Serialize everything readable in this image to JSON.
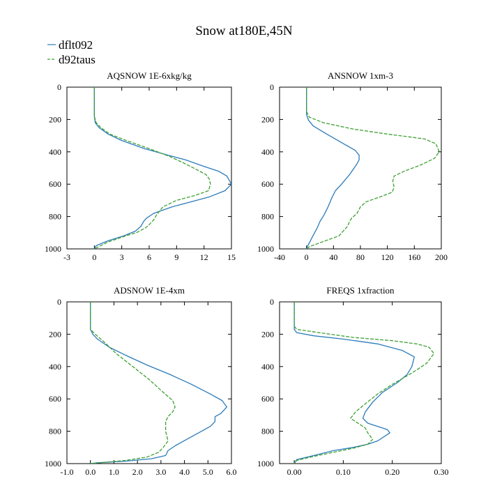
{
  "title": "Snow at180E,45N",
  "legend": [
    {
      "label": "dflt092",
      "color": "#2b7bba",
      "dash": "solid"
    },
    {
      "label": "d92taus",
      "color": "#3ea032",
      "dash": "dashed"
    }
  ],
  "chart_data": [
    {
      "type": "line",
      "title": "AQSNOW  1E-6xkg/kg",
      "xlim": [
        -3,
        15
      ],
      "ylim": [
        1000,
        0
      ],
      "xticks": [
        -3,
        0,
        3,
        6,
        9,
        12,
        15
      ],
      "xticklabels": [
        "-3",
        "0",
        "3",
        "6",
        "9",
        "12",
        "15"
      ],
      "yticks": [
        0,
        200,
        400,
        600,
        800,
        1000
      ],
      "yticklabels": [
        "0",
        "200",
        "400",
        "600",
        "800",
        "1000"
      ],
      "series": [
        {
          "name": "dflt092",
          "x": [
            0,
            0,
            0.1,
            0.5,
            1.5,
            3,
            5.5,
            8,
            10,
            12,
            13.6,
            14.5,
            15,
            14.3,
            12.5,
            10.5,
            8.5,
            6.5,
            5.7,
            5.4,
            5.1,
            4.5,
            3.2,
            1.5,
            0.2,
            0
          ],
          "y": [
            0,
            180,
            220,
            250,
            290,
            330,
            380,
            420,
            450,
            490,
            520,
            550,
            600,
            640,
            680,
            710,
            740,
            780,
            810,
            830,
            860,
            890,
            920,
            950,
            980,
            1000
          ]
        },
        {
          "name": "d92taus",
          "x": [
            0,
            0,
            0.2,
            0.7,
            1.7,
            3.5,
            6,
            8.3,
            9.8,
            11.2,
            12.2,
            12.6,
            12.7,
            12.5,
            11,
            9,
            7.5,
            6.8,
            6.5,
            6,
            5.6,
            4.6,
            3.4,
            1.4,
            0
          ],
          "y": [
            0,
            180,
            220,
            250,
            290,
            330,
            380,
            430,
            470,
            510,
            540,
            570,
            600,
            640,
            670,
            700,
            740,
            790,
            820,
            850,
            870,
            900,
            920,
            960,
            1000
          ]
        }
      ]
    },
    {
      "type": "line",
      "title": "ANSNOW  1xm-3",
      "xlim": [
        -40,
        200
      ],
      "ylim": [
        1000,
        0
      ],
      "xticks": [
        -40,
        0,
        40,
        80,
        120,
        160,
        200
      ],
      "xticklabels": [
        "-40",
        "0",
        "40",
        "80",
        "120",
        "160",
        "200"
      ],
      "yticks": [
        0,
        200,
        400,
        600,
        800,
        1000
      ],
      "yticklabels": [
        "0",
        "200",
        "400",
        "600",
        "800",
        "1000"
      ],
      "series": [
        {
          "name": "dflt092",
          "x": [
            0,
            0,
            3,
            10,
            30,
            55,
            72,
            78,
            78,
            74,
            64,
            52,
            43,
            38,
            32,
            26,
            20,
            16,
            12,
            7,
            2,
            0
          ],
          "y": [
            0,
            170,
            205,
            240,
            290,
            350,
            390,
            420,
            450,
            480,
            540,
            600,
            640,
            680,
            740,
            790,
            830,
            870,
            900,
            940,
            980,
            1000
          ]
        },
        {
          "name": "d92taus",
          "x": [
            0,
            0,
            4,
            25,
            70,
            120,
            175,
            192,
            197,
            190,
            170,
            145,
            130,
            128,
            130,
            127,
            108,
            88,
            80,
            75,
            67,
            64,
            61,
            48,
            28,
            5,
            0
          ],
          "y": [
            0,
            150,
            185,
            220,
            260,
            290,
            320,
            350,
            400,
            440,
            480,
            520,
            550,
            580,
            620,
            650,
            680,
            710,
            740,
            780,
            810,
            830,
            860,
            920,
            950,
            985,
            1000
          ]
        }
      ]
    },
    {
      "type": "line",
      "title": "ADSNOW  1E-4xm",
      "xlim": [
        -1,
        6
      ],
      "ylim": [
        1000,
        0
      ],
      "xticks": [
        -1,
        0,
        1,
        2,
        3,
        4,
        5,
        6
      ],
      "xticklabels": [
        "-1.0",
        "0.0",
        "1.0",
        "2.0",
        "3.0",
        "4.0",
        "5.0",
        "6.0"
      ],
      "yticks": [
        0,
        200,
        400,
        600,
        800,
        1000
      ],
      "yticklabels": [
        "0",
        "200",
        "400",
        "600",
        "800",
        "1000"
      ],
      "series": [
        {
          "name": "dflt092",
          "x": [
            0,
            0,
            0.1,
            0.3,
            0.8,
            1.5,
            2.4,
            3.4,
            4.3,
            5.1,
            5.6,
            5.8,
            5.55,
            5.3,
            5.3,
            5.1,
            4.6,
            4.1,
            3.6,
            3.3,
            3.2,
            2.6,
            1.5,
            0.3,
            0
          ],
          "y": [
            0,
            170,
            200,
            230,
            280,
            330,
            390,
            450,
            510,
            570,
            610,
            650,
            690,
            710,
            740,
            770,
            810,
            850,
            890,
            920,
            950,
            970,
            985,
            995,
            1000
          ]
        },
        {
          "name": "d92taus",
          "x": [
            0,
            0,
            0.2,
            0.6,
            1.1,
            1.8,
            2.5,
            3.1,
            3.5,
            3.6,
            3.5,
            3.3,
            3.2,
            3.2,
            3.3,
            3.1,
            2.9,
            2.4,
            1.5,
            0.4,
            0
          ],
          "y": [
            0,
            170,
            200,
            250,
            320,
            400,
            480,
            560,
            610,
            650,
            680,
            710,
            740,
            800,
            860,
            900,
            930,
            960,
            980,
            995,
            1000
          ]
        }
      ]
    },
    {
      "type": "line",
      "title": "FREQS  1xfraction",
      "xlim": [
        -0.03,
        0.3
      ],
      "ylim": [
        1000,
        0
      ],
      "xticks": [
        0.0,
        0.1,
        0.2,
        0.3
      ],
      "xticklabels": [
        "0.00",
        "0.10",
        "0.20",
        "0.30"
      ],
      "yticks": [
        0,
        200,
        400,
        600,
        800,
        1000
      ],
      "yticklabels": [
        "0",
        "200",
        "400",
        "600",
        "800",
        "1000"
      ],
      "series": [
        {
          "name": "dflt092",
          "x": [
            0,
            0,
            0.005,
            0.04,
            0.1,
            0.17,
            0.22,
            0.245,
            0.24,
            0.23,
            0.21,
            0.18,
            0.16,
            0.145,
            0.14,
            0.15,
            0.17,
            0.19,
            0.195,
            0.17,
            0.15,
            0.12,
            0.08,
            0.04,
            0.005,
            0
          ],
          "y": [
            0,
            170,
            190,
            210,
            230,
            260,
            300,
            340,
            400,
            450,
            500,
            560,
            620,
            680,
            720,
            750,
            770,
            790,
            810,
            860,
            880,
            900,
            920,
            950,
            975,
            1000
          ]
        },
        {
          "name": "d92taus",
          "x": [
            0,
            0,
            0.005,
            0.05,
            0.12,
            0.2,
            0.25,
            0.275,
            0.285,
            0.27,
            0.24,
            0.2,
            0.17,
            0.145,
            0.125,
            0.115,
            0.13,
            0.145,
            0.15,
            0.16,
            0.15,
            0.12,
            0.08,
            0.04,
            0.005,
            0
          ],
          "y": [
            0,
            150,
            170,
            190,
            220,
            240,
            260,
            280,
            320,
            380,
            440,
            510,
            570,
            630,
            680,
            720,
            750,
            780,
            810,
            850,
            880,
            905,
            930,
            955,
            980,
            1000
          ]
        }
      ]
    }
  ]
}
